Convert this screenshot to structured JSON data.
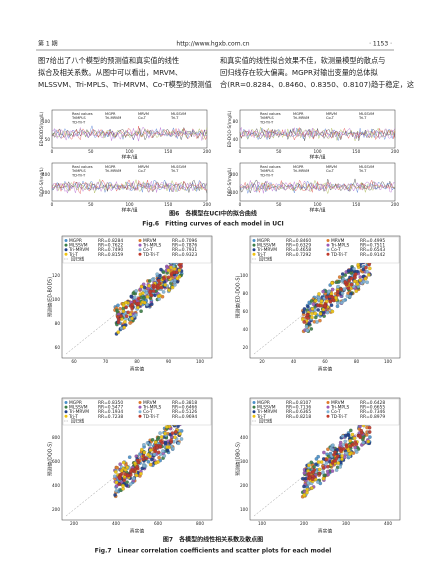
{
  "header": {
    "left": "第 1 期",
    "center": "http://www.hgxb.com.cn",
    "right": "· 1153 ·"
  },
  "text": {
    "left_lines": [
      "图7给出了八个模型的预测值和真实值的线性",
      "拟合及相关系数。从图中可以看出，MRVM、",
      "MLSSVM、Tri-MPLS、Tri-MRVM、Co-T模型的预测值"
    ],
    "right_lines": [
      "和真实值的线性拟合效果不佳，软测量模型的散点与",
      "回归线存在较大偏离。MGPR对输出变量的总体拟",
      "合(RR=0.8284、0.8460、0.8350、0.8107)趋于稳定，这"
    ]
  },
  "figure6": {
    "legend": [
      "Real values",
      "MGPR",
      "MRVM",
      "MLSSVM",
      "TriMPLS",
      "Tri-MRVM",
      "Co-T",
      "Tri-T",
      "TD-Tri-T"
    ],
    "panels": [
      {
        "y_label": "ED-BOD5/(mg/L)",
        "x_label": "样本/组",
        "xticks": [
          "0",
          "50",
          "100",
          "150",
          "200"
        ],
        "yticks": [
          "50",
          "100"
        ]
      },
      {
        "y_label": "ED-DQO-S/(mg/L)",
        "x_label": "样本/组",
        "xticks": [
          "0",
          "50",
          "100",
          "150",
          "200"
        ],
        "yticks": [
          "40",
          "80"
        ]
      },
      {
        "y_label": "DQO-S/(mg/L)",
        "x_label": "样本/组",
        "xticks": [
          "0",
          "50",
          "100",
          "150",
          "200"
        ],
        "yticks": [
          "200",
          "400"
        ]
      },
      {
        "y_label": "DBO-S/(mg/L)",
        "x_label": "样本/组",
        "xticks": [
          "0",
          "50",
          "100",
          "150",
          "200"
        ],
        "yticks": [
          "100",
          "200"
        ]
      }
    ],
    "caption_cn": "图6　各模型在UCI中的拟合曲线",
    "caption_en": "Fig.6　Fitting curves of each model in UCI"
  },
  "figure7": {
    "panels": [
      {
        "y_label": "预测值(ED-BOD5)",
        "x_label": "真实值",
        "xticks": [
          "60",
          "70",
          "80",
          "90",
          "100"
        ],
        "yticks": [
          "60",
          "80",
          "100",
          "120"
        ],
        "regression": "回归线",
        "legend": [
          [
            "MGPR",
            "RR=0.8284"
          ],
          [
            "MRVM",
            "RR=0.7096"
          ],
          [
            "MLSSVM",
            "RR=0.7622"
          ],
          [
            "Tri-MPLS",
            "RR=0.7876"
          ],
          [
            "Tri-MRVM",
            "RR=0.7490"
          ],
          [
            "Co-T",
            "RR=0.7931"
          ],
          [
            "Tri-T",
            "RR=0.8159"
          ],
          [
            "TD-Tri-T",
            "RR=0.9323"
          ]
        ]
      },
      {
        "y_label": "预测值(ED-DQO-S)",
        "x_label": "真实值",
        "xticks": [
          "20",
          "40",
          "60",
          "80",
          "100"
        ],
        "yticks": [
          "20",
          "40",
          "60",
          "80",
          "100"
        ],
        "regression": "回归线",
        "legend": [
          [
            "MGPR",
            "RR=0.8460"
          ],
          [
            "MRVM",
            "RR=0.4995"
          ],
          [
            "MLSSVM",
            "RR=0.6329"
          ],
          [
            "Tri-MPLS",
            "RR=0.7511"
          ],
          [
            "Tri-MRVM",
            "RR=0.4658"
          ],
          [
            "Co-T",
            "RR=0.6543"
          ],
          [
            "Tri-T",
            "RR=0.7292"
          ],
          [
            "TD-Tri-T",
            "RR=0.9142"
          ]
        ]
      },
      {
        "y_label": "预测值(DQO-S)",
        "x_label": "真实值",
        "xticks": [
          "200",
          "400",
          "600",
          "800"
        ],
        "yticks": [
          "200",
          "400",
          "600",
          "800"
        ],
        "regression": "回归线",
        "legend": [
          [
            "MGPR",
            "RR=0.8350"
          ],
          [
            "MRVM",
            "RR=0.3818"
          ],
          [
            "MLSSVM",
            "RR=0.5477"
          ],
          [
            "Tri-MPLS",
            "RR=0.6466"
          ],
          [
            "Tri-MRVM",
            "RR=0.1934"
          ],
          [
            "Co-T",
            "RR=0.5126"
          ],
          [
            "Tri-T",
            "RR=0.7238"
          ],
          [
            "TD-Tri-T",
            "RR=0.9694"
          ]
        ]
      },
      {
        "y_label": "预测值(DBO-S)",
        "x_label": "真实值",
        "xticks": [
          "100",
          "200",
          "300",
          "400"
        ],
        "yticks": [
          "100",
          "200",
          "300",
          "400"
        ],
        "regression": "回归线",
        "legend": [
          [
            "MGPR",
            "RR=0.8107"
          ],
          [
            "MRVM",
            "RR=0.6428"
          ],
          [
            "MLSSVM",
            "RR=0.7136"
          ],
          [
            "Tri-MPLS",
            "RR=0.6655"
          ],
          [
            "Tri-MRVM",
            "RR=0.6365"
          ],
          [
            "Co-T",
            "RR=0.7346"
          ],
          [
            "Tri-T",
            "RR=0.8218"
          ],
          [
            "TD-Tri-T",
            "RR=0.8979"
          ]
        ]
      }
    ],
    "caption_cn": "图7　各模型的线性相关系数及散点图",
    "caption_en": "Fig.7　Linear correlation coefficients and scatter plots for each model"
  }
}
